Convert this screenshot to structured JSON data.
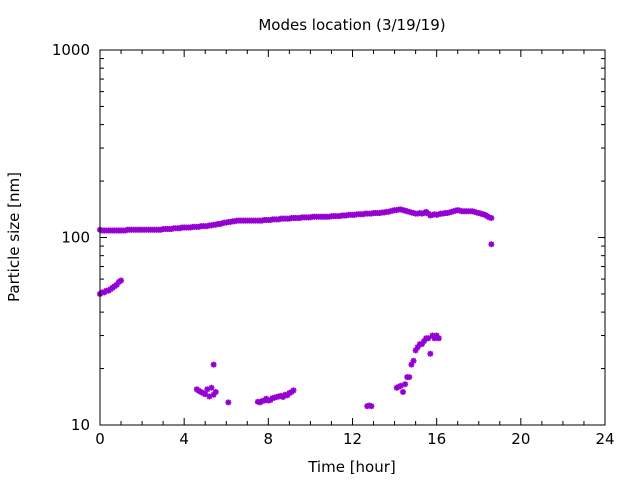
{
  "chart_data": {
    "type": "scatter",
    "title": "Modes location (3/19/19)",
    "xlabel": "Time [hour]",
    "ylabel": "Particle size [nm]",
    "xlim": [
      0,
      24
    ],
    "ylim": [
      10,
      1000
    ],
    "yscale": "log",
    "xticks": [
      0,
      4,
      8,
      12,
      16,
      20,
      24
    ],
    "yticks": [
      10,
      100,
      1000
    ],
    "grid": false,
    "legend": "none",
    "marker_color": "#9400d3",
    "series": [
      {
        "points": [
          [
            0.0,
            110
          ],
          [
            0.1,
            109
          ],
          [
            0.2,
            109
          ],
          [
            0.3,
            109
          ],
          [
            0.4,
            109
          ],
          [
            0.5,
            109
          ],
          [
            0.6,
            109
          ],
          [
            0.7,
            109
          ],
          [
            0.8,
            109
          ],
          [
            0.9,
            109
          ],
          [
            1.0,
            109
          ],
          [
            1.1,
            109
          ],
          [
            1.2,
            109
          ],
          [
            1.3,
            110
          ],
          [
            1.4,
            110
          ],
          [
            1.5,
            110
          ],
          [
            1.6,
            110
          ],
          [
            1.7,
            110
          ],
          [
            1.8,
            110
          ],
          [
            1.9,
            110
          ],
          [
            2.0,
            110
          ],
          [
            2.1,
            110
          ],
          [
            2.2,
            110
          ],
          [
            2.3,
            110
          ],
          [
            2.4,
            110
          ],
          [
            2.5,
            110
          ],
          [
            2.6,
            110
          ],
          [
            2.7,
            110
          ],
          [
            2.8,
            110
          ],
          [
            2.9,
            110
          ],
          [
            3.0,
            111
          ],
          [
            3.1,
            111
          ],
          [
            3.2,
            111
          ],
          [
            3.3,
            111
          ],
          [
            3.4,
            111
          ],
          [
            3.5,
            112
          ],
          [
            3.6,
            112
          ],
          [
            3.7,
            112
          ],
          [
            3.8,
            112
          ],
          [
            3.9,
            113
          ],
          [
            4.0,
            113
          ],
          [
            4.1,
            113
          ],
          [
            4.2,
            113
          ],
          [
            4.3,
            113
          ],
          [
            4.4,
            114
          ],
          [
            4.5,
            114
          ],
          [
            4.6,
            114
          ],
          [
            4.7,
            114
          ],
          [
            4.8,
            115
          ],
          [
            4.9,
            115
          ],
          [
            5.0,
            115
          ],
          [
            5.1,
            115
          ],
          [
            5.2,
            116
          ],
          [
            5.3,
            116
          ],
          [
            5.4,
            117
          ],
          [
            5.5,
            117
          ],
          [
            5.6,
            118
          ],
          [
            5.7,
            118
          ],
          [
            5.8,
            119
          ],
          [
            5.9,
            120
          ],
          [
            6.0,
            120
          ],
          [
            6.1,
            121
          ],
          [
            6.2,
            121
          ],
          [
            6.3,
            122
          ],
          [
            6.4,
            122
          ],
          [
            6.5,
            123
          ],
          [
            6.6,
            123
          ],
          [
            6.7,
            123
          ],
          [
            6.8,
            123
          ],
          [
            6.9,
            123
          ],
          [
            7.0,
            123
          ],
          [
            7.1,
            123
          ],
          [
            7.2,
            123
          ],
          [
            7.3,
            123
          ],
          [
            7.4,
            123
          ],
          [
            7.5,
            123
          ],
          [
            7.6,
            123
          ],
          [
            7.7,
            123
          ],
          [
            7.8,
            124
          ],
          [
            7.9,
            124
          ],
          [
            8.0,
            124
          ],
          [
            8.1,
            124
          ],
          [
            8.2,
            125
          ],
          [
            8.3,
            125
          ],
          [
            8.4,
            125
          ],
          [
            8.5,
            125
          ],
          [
            8.6,
            126
          ],
          [
            8.7,
            126
          ],
          [
            8.8,
            126
          ],
          [
            8.9,
            126
          ],
          [
            9.0,
            126
          ],
          [
            9.1,
            127
          ],
          [
            9.2,
            127
          ],
          [
            9.3,
            127
          ],
          [
            9.4,
            127
          ],
          [
            9.5,
            127
          ],
          [
            9.6,
            128
          ],
          [
            9.7,
            128
          ],
          [
            9.8,
            128
          ],
          [
            9.9,
            128
          ],
          [
            10.0,
            128
          ],
          [
            10.1,
            129
          ],
          [
            10.2,
            129
          ],
          [
            10.3,
            129
          ],
          [
            10.4,
            129
          ],
          [
            10.5,
            129
          ],
          [
            10.6,
            129
          ],
          [
            10.7,
            129
          ],
          [
            10.8,
            129
          ],
          [
            10.9,
            129
          ],
          [
            11.0,
            130
          ],
          [
            11.1,
            130
          ],
          [
            11.2,
            130
          ],
          [
            11.3,
            130
          ],
          [
            11.4,
            130
          ],
          [
            11.5,
            131
          ],
          [
            11.6,
            131
          ],
          [
            11.7,
            131
          ],
          [
            11.8,
            132
          ],
          [
            11.9,
            132
          ],
          [
            12.0,
            132
          ],
          [
            12.1,
            132
          ],
          [
            12.2,
            133
          ],
          [
            12.3,
            133
          ],
          [
            12.4,
            133
          ],
          [
            12.5,
            133
          ],
          [
            12.6,
            134
          ],
          [
            12.7,
            134
          ],
          [
            12.8,
            134
          ],
          [
            12.9,
            134
          ],
          [
            13.0,
            135
          ],
          [
            13.1,
            135
          ],
          [
            13.2,
            135
          ],
          [
            13.3,
            135
          ],
          [
            13.4,
            136
          ],
          [
            13.5,
            136
          ],
          [
            13.6,
            137
          ],
          [
            13.7,
            137
          ],
          [
            13.8,
            138
          ],
          [
            13.9,
            139
          ],
          [
            14.0,
            140
          ],
          [
            14.1,
            140
          ],
          [
            14.2,
            141
          ],
          [
            14.3,
            141
          ],
          [
            14.4,
            140
          ],
          [
            14.5,
            139
          ],
          [
            14.6,
            138
          ],
          [
            14.7,
            137
          ],
          [
            14.8,
            136
          ],
          [
            14.9,
            135
          ],
          [
            15.0,
            134
          ],
          [
            15.1,
            134
          ],
          [
            15.2,
            135
          ],
          [
            15.3,
            134
          ],
          [
            15.4,
            135
          ],
          [
            15.5,
            137
          ],
          [
            15.6,
            134
          ],
          [
            15.7,
            131
          ],
          [
            15.8,
            132
          ],
          [
            15.9,
            133
          ],
          [
            16.0,
            132
          ],
          [
            16.1,
            133
          ],
          [
            16.2,
            134
          ],
          [
            16.3,
            134
          ],
          [
            16.4,
            135
          ],
          [
            16.5,
            135
          ],
          [
            16.6,
            136
          ],
          [
            16.7,
            137
          ],
          [
            16.8,
            138
          ],
          [
            16.9,
            139
          ],
          [
            17.0,
            140
          ],
          [
            17.1,
            139
          ],
          [
            17.2,
            138
          ],
          [
            17.3,
            138
          ],
          [
            17.4,
            138
          ],
          [
            17.5,
            138
          ],
          [
            17.6,
            138
          ],
          [
            17.7,
            138
          ],
          [
            17.8,
            137
          ],
          [
            17.9,
            136
          ],
          [
            18.0,
            135
          ],
          [
            18.1,
            134
          ],
          [
            18.2,
            133
          ],
          [
            18.3,
            132
          ],
          [
            18.4,
            130
          ],
          [
            18.5,
            128
          ],
          [
            18.6,
            127
          ],
          [
            18.6,
            92
          ],
          [
            0.0,
            50
          ],
          [
            0.1,
            51
          ],
          [
            0.2,
            51
          ],
          [
            0.3,
            52
          ],
          [
            0.4,
            52
          ],
          [
            0.5,
            53
          ],
          [
            0.6,
            54
          ],
          [
            0.7,
            55
          ],
          [
            0.8,
            56
          ],
          [
            0.9,
            58
          ],
          [
            1.0,
            59
          ],
          [
            4.6,
            15.5
          ],
          [
            4.7,
            15.2
          ],
          [
            4.8,
            15.0
          ],
          [
            4.9,
            14.8
          ],
          [
            5.0,
            14.6
          ],
          [
            5.1,
            15.5
          ],
          [
            5.2,
            14.2
          ],
          [
            5.3,
            15.8
          ],
          [
            5.4,
            14.5
          ],
          [
            5.5,
            15.0
          ],
          [
            5.4,
            21
          ],
          [
            6.1,
            13.2
          ],
          [
            7.5,
            13.3
          ],
          [
            7.6,
            13.2
          ],
          [
            7.7,
            13.4
          ],
          [
            7.8,
            13.5
          ],
          [
            7.9,
            13.8
          ],
          [
            8.0,
            13.5
          ],
          [
            8.1,
            13.6
          ],
          [
            8.2,
            13.9
          ],
          [
            8.3,
            14.0
          ],
          [
            8.4,
            14.1
          ],
          [
            8.5,
            14.2
          ],
          [
            8.6,
            14.3
          ],
          [
            8.7,
            14.1
          ],
          [
            8.8,
            14.5
          ],
          [
            8.9,
            14.4
          ],
          [
            9.0,
            14.8
          ],
          [
            9.1,
            15.0
          ],
          [
            9.2,
            15.3
          ],
          [
            12.7,
            12.6
          ],
          [
            12.8,
            12.7
          ],
          [
            12.9,
            12.6
          ],
          [
            14.1,
            15.8
          ],
          [
            14.2,
            16.0
          ],
          [
            14.3,
            16.2
          ],
          [
            14.4,
            15.0
          ],
          [
            14.5,
            16.5
          ],
          [
            14.6,
            18.0
          ],
          [
            14.7,
            18.0
          ],
          [
            14.8,
            21
          ],
          [
            14.9,
            22
          ],
          [
            15.0,
            25
          ],
          [
            15.1,
            26
          ],
          [
            15.2,
            27
          ],
          [
            15.3,
            27
          ],
          [
            15.4,
            28
          ],
          [
            15.5,
            29
          ],
          [
            15.6,
            29
          ],
          [
            15.7,
            24
          ],
          [
            15.8,
            30
          ],
          [
            15.9,
            29
          ],
          [
            16.0,
            30
          ],
          [
            16.1,
            29
          ]
        ]
      }
    ]
  }
}
